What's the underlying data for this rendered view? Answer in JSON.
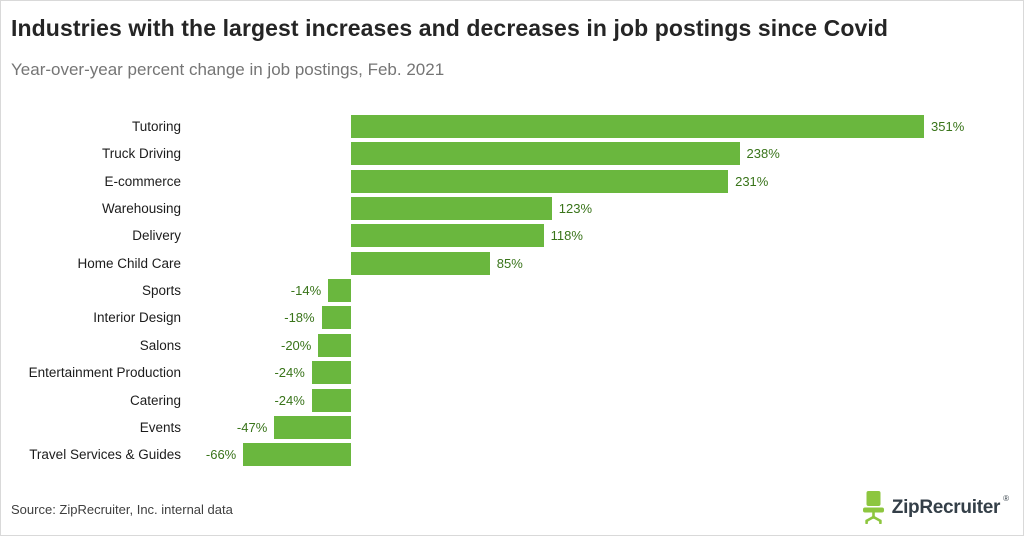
{
  "header": {
    "title": "Industries with the largest increases and decreases in job postings since Covid",
    "subtitle": "Year-over-year percent change in job postings, Feb. 2021"
  },
  "chart_data": {
    "type": "bar",
    "orientation": "horizontal",
    "title": "Industries with the largest increases and decreases in job postings since Covid",
    "subtitle": "Year-over-year percent change in job postings, Feb. 2021",
    "categories": [
      "Tutoring",
      "Truck Driving",
      "E-commerce",
      "Warehousing",
      "Delivery",
      "Home Child Care",
      "Sports",
      "Interior Design",
      "Salons",
      "Entertainment Production",
      "Catering",
      "Events",
      "Travel Services & Guides"
    ],
    "values": [
      351,
      238,
      231,
      123,
      118,
      85,
      -14,
      -18,
      -20,
      -24,
      -24,
      -47,
      -66
    ],
    "value_labels": [
      "351%",
      "238%",
      "231%",
      "123%",
      "118%",
      "85%",
      "-14%",
      "-18%",
      "-20%",
      "-24%",
      "-24%",
      "-47%",
      "-66%"
    ],
    "unit": "percent",
    "xlim": [
      -66,
      351
    ],
    "grid": false,
    "legend": false,
    "bar_color": "#6ab73e",
    "value_label_color": "#39741a"
  },
  "footer": {
    "source": "Source: ZipRecruiter, Inc. internal data",
    "logo_text": "ZipRecruiter",
    "logo_mark": "®"
  }
}
